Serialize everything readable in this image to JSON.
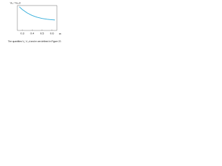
{
  "chart_data": {
    "type": "line",
    "y_label": "V₁ / V₀,d",
    "x_label": "m",
    "caption": "The quantities V₁, V₀,d and m are defined in Figure 22.",
    "x": [
      0.27,
      0.3,
      0.35,
      0.4,
      0.45,
      0.5,
      0.55,
      0.6,
      0.63
    ],
    "series": [
      {
        "color": "#2aa9d8",
        "values": [
          0.95,
          0.84,
          0.7,
          0.6,
          0.53,
          0.48,
          0.45,
          0.43,
          0.42
        ]
      }
    ],
    "xlim": [
      0.25,
      0.65
    ],
    "xticks": [
      0.3,
      0.4,
      0.5,
      0.6
    ],
    "ylim": [
      0,
      1
    ]
  }
}
